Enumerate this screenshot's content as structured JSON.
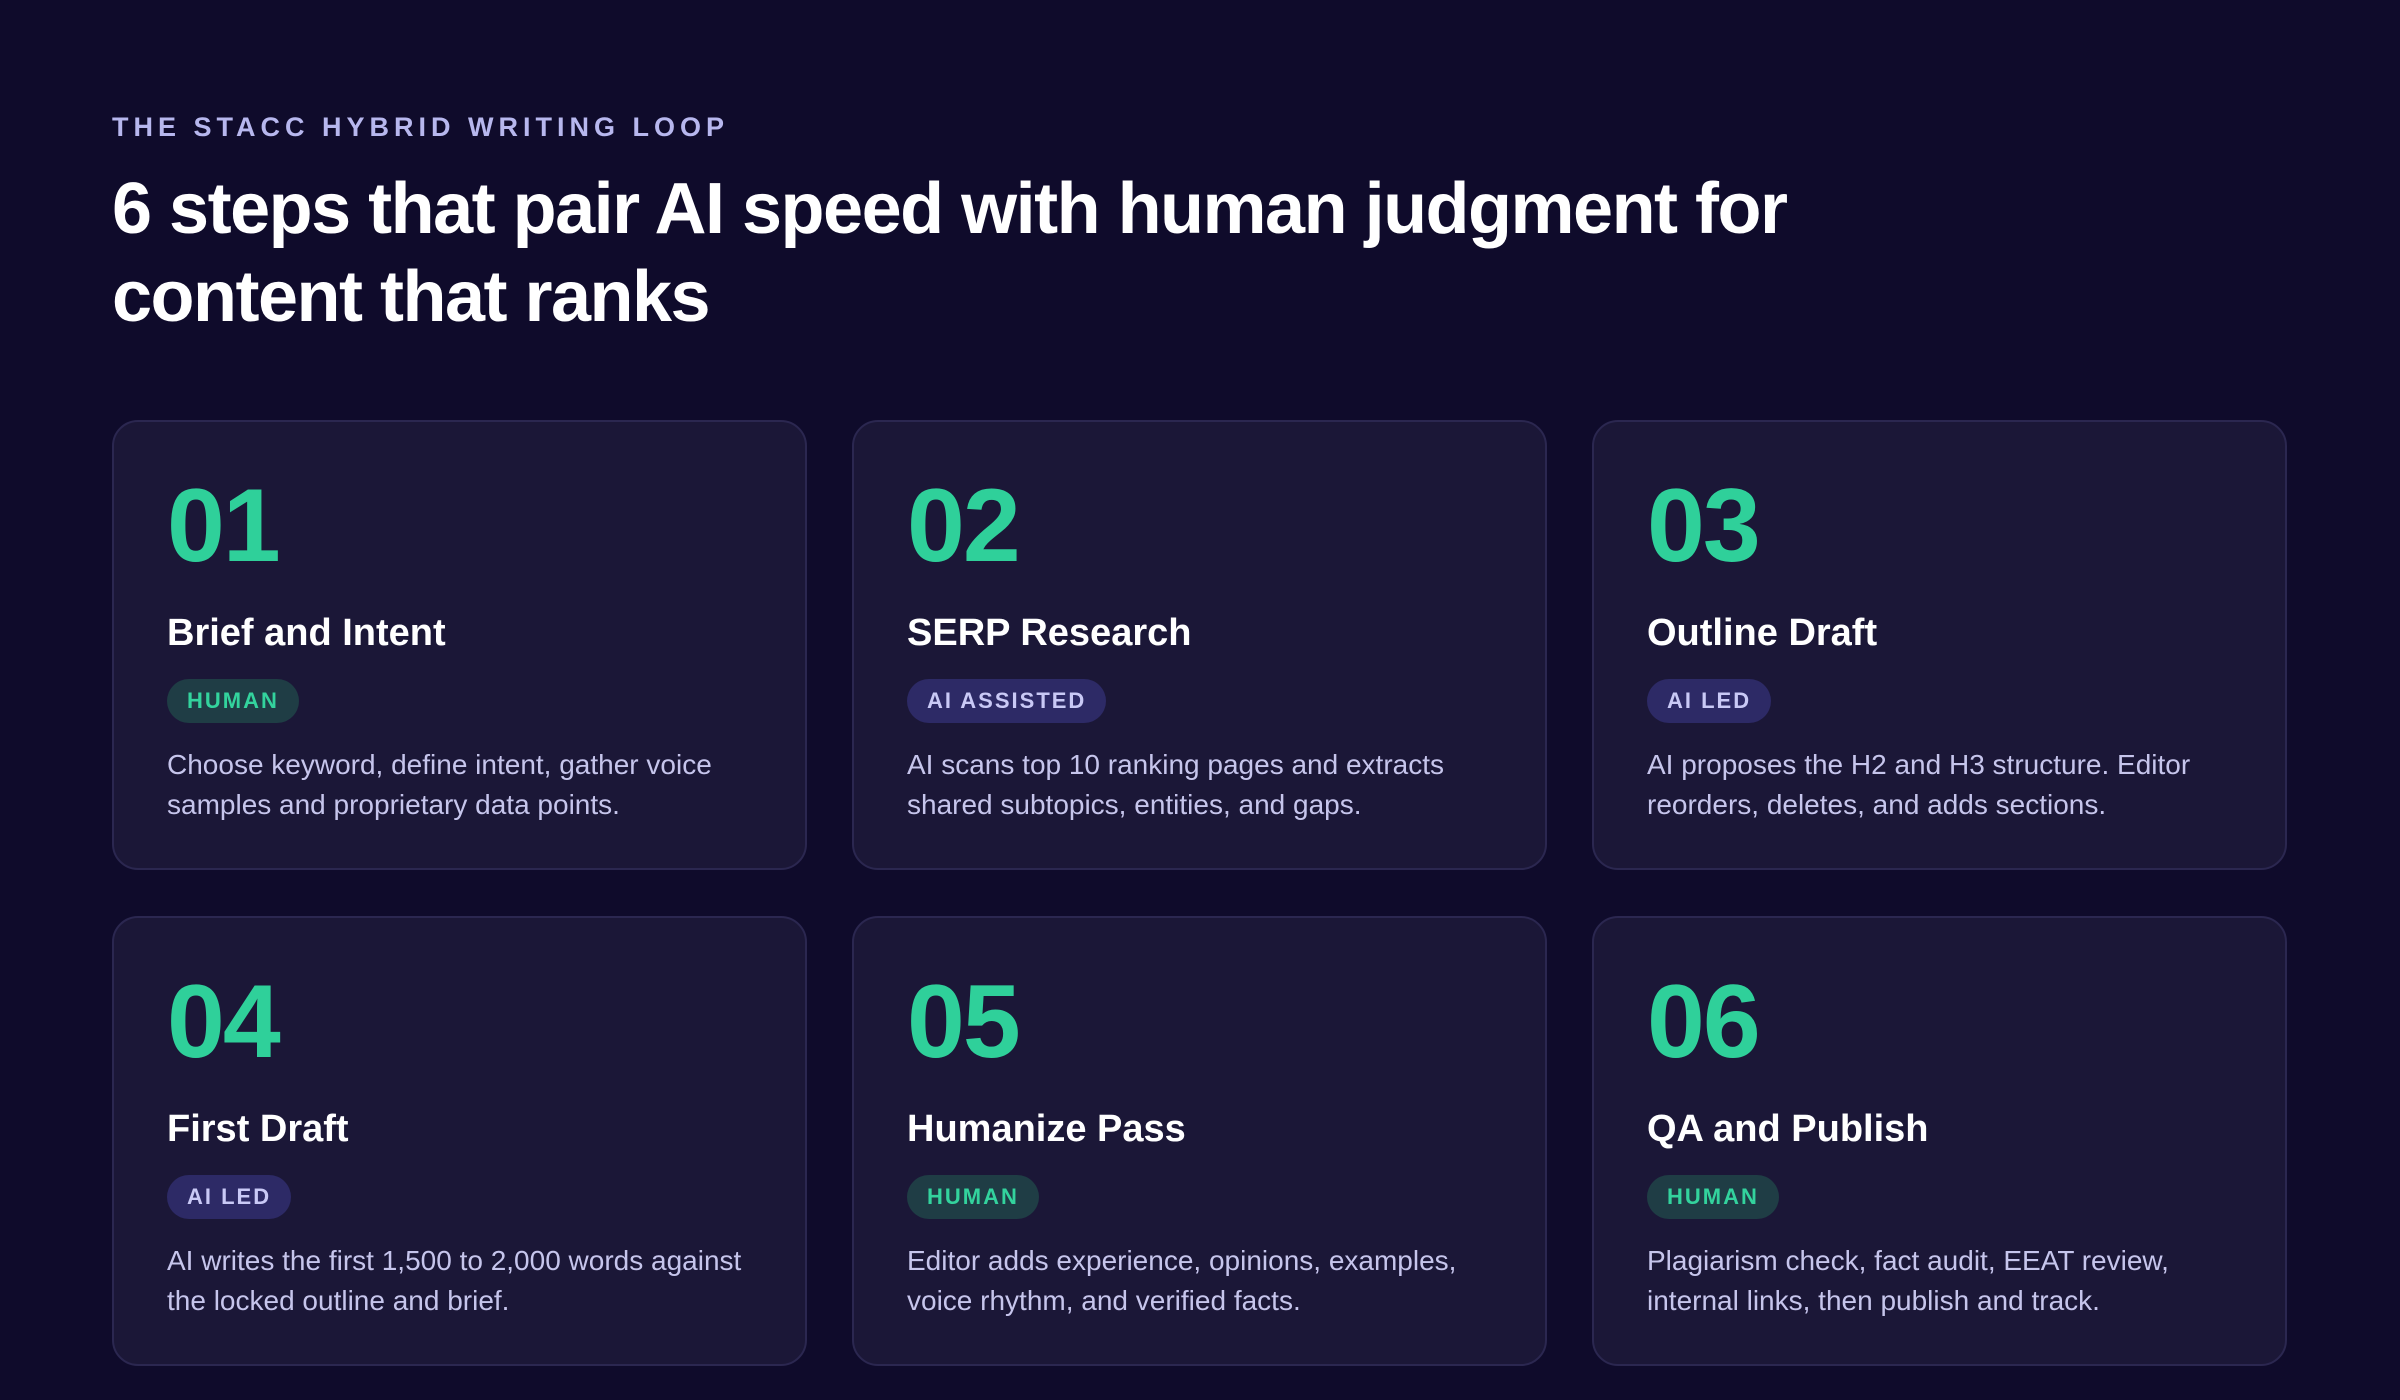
{
  "header": {
    "eyebrow": "THE STACC HYBRID WRITING LOOP",
    "title": "6 steps that pair AI speed with human judgment for content that ranks"
  },
  "colors": {
    "background": "#0f0b2b",
    "card": "#1b1737",
    "accent_green": "#2fd09a",
    "human_badge_bg": "#1f3d45",
    "ai_badge_bg": "#2d2a66"
  },
  "steps": [
    {
      "number": "01",
      "title": "Brief and Intent",
      "badge": "HUMAN",
      "badge_kind": "human",
      "description": "Choose keyword, define intent, gather voice samples and proprietary data points."
    },
    {
      "number": "02",
      "title": "SERP Research",
      "badge": "AI ASSISTED",
      "badge_kind": "ai",
      "description": "AI scans top 10 ranking pages and extracts shared subtopics, entities, and gaps."
    },
    {
      "number": "03",
      "title": "Outline Draft",
      "badge": "AI LED",
      "badge_kind": "ai",
      "description": "AI proposes the H2 and H3 structure. Editor reorders, deletes, and adds sections."
    },
    {
      "number": "04",
      "title": "First Draft",
      "badge": "AI LED",
      "badge_kind": "ai",
      "description": "AI writes the first 1,500 to 2,000 words against the locked outline and brief."
    },
    {
      "number": "05",
      "title": "Humanize Pass",
      "badge": "HUMAN",
      "badge_kind": "human",
      "description": "Editor adds experience, opinions, examples, voice rhythm, and verified facts."
    },
    {
      "number": "06",
      "title": "QA and Publish",
      "badge": "HUMAN",
      "badge_kind": "human",
      "description": "Plagiarism check, fact audit, EEAT review, internal links, then publish and track."
    }
  ]
}
